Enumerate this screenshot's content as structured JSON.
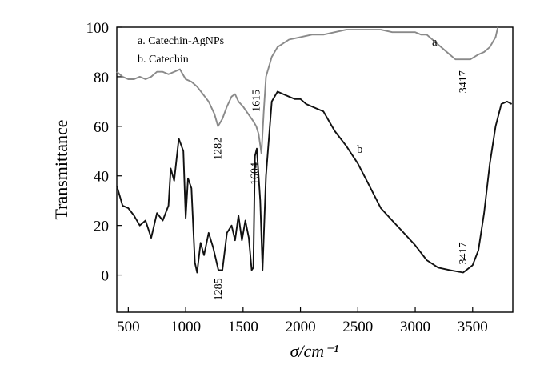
{
  "chart_data": {
    "type": "line",
    "xlabel": "σ/cm⁻¹",
    "ylabel": "Transmittance",
    "xlim": [
      400,
      3850
    ],
    "ylim": [
      -15,
      100
    ],
    "xticks": [
      500,
      1000,
      1500,
      2000,
      2500,
      3000,
      3500
    ],
    "yticks": [
      0,
      20,
      40,
      60,
      80,
      100
    ],
    "grid": false,
    "legend": {
      "position": "top-left",
      "entries": [
        "a. Catechin-AgNPs",
        "b. Catechin"
      ]
    },
    "series": [
      {
        "name": "a",
        "color": "#8a8a8a",
        "x": [
          400,
          450,
          500,
          550,
          600,
          650,
          700,
          750,
          800,
          850,
          900,
          950,
          1000,
          1050,
          1100,
          1150,
          1200,
          1250,
          1282,
          1320,
          1360,
          1400,
          1430,
          1460,
          1500,
          1530,
          1560,
          1590,
          1615,
          1635,
          1660,
          1680,
          1700,
          1750,
          1800,
          1900,
          2000,
          2100,
          2200,
          2300,
          2400,
          2500,
          2600,
          2700,
          2800,
          2900,
          3000,
          3050,
          3100,
          3150,
          3200,
          3250,
          3300,
          3350,
          3417,
          3480,
          3550,
          3600,
          3650,
          3700,
          3720
        ],
        "y": [
          82,
          80,
          79,
          79,
          80,
          79,
          80,
          82,
          82,
          81,
          82,
          83,
          79,
          78,
          76,
          73,
          70,
          65,
          60,
          63,
          68,
          72,
          73,
          70,
          68,
          66,
          64,
          62,
          60,
          57,
          49,
          66,
          80,
          88,
          92,
          95,
          96,
          97,
          97,
          98,
          99,
          99,
          99,
          99,
          98,
          98,
          98,
          97,
          97,
          95,
          93,
          91,
          89,
          87,
          87,
          87,
          89,
          90,
          92,
          96,
          100
        ]
      },
      {
        "name": "b",
        "color": "#111111",
        "x": [
          400,
          450,
          500,
          550,
          600,
          650,
          700,
          750,
          800,
          850,
          870,
          900,
          940,
          980,
          1000,
          1020,
          1050,
          1080,
          1100,
          1130,
          1160,
          1200,
          1240,
          1285,
          1320,
          1360,
          1400,
          1430,
          1460,
          1490,
          1520,
          1550,
          1575,
          1590,
          1604,
          1620,
          1650,
          1670,
          1700,
          1750,
          1800,
          1850,
          1900,
          1950,
          2000,
          2050,
          2100,
          2150,
          2200,
          2250,
          2300,
          2400,
          2500,
          2600,
          2700,
          2800,
          2900,
          3000,
          3100,
          3200,
          3300,
          3417,
          3500,
          3550,
          3600,
          3650,
          3700,
          3750,
          3800,
          3840
        ],
        "y": [
          36,
          28,
          27,
          24,
          20,
          22,
          15,
          25,
          22,
          28,
          43,
          38,
          55,
          50,
          23,
          39,
          35,
          5,
          1,
          13,
          8,
          17,
          11,
          2,
          2,
          17,
          20,
          14,
          24,
          14,
          22,
          15,
          2,
          3,
          48,
          51,
          30,
          2,
          40,
          70,
          74,
          73,
          72,
          71,
          71,
          69,
          68,
          67,
          66,
          62,
          58,
          52,
          45,
          36,
          27,
          22,
          17,
          12,
          6,
          3,
          2,
          1,
          4,
          10,
          25,
          45,
          60,
          69,
          70,
          69
        ]
      }
    ],
    "annotations": [
      {
        "text": "1282",
        "x": 1282,
        "series": "a"
      },
      {
        "text": "1615",
        "x": 1615,
        "series": "a"
      },
      {
        "text": "3417",
        "x": 3417,
        "series": "a"
      },
      {
        "text": "1285",
        "x": 1285,
        "series": "b"
      },
      {
        "text": "1604",
        "x": 1604,
        "series": "b"
      },
      {
        "text": "3417",
        "x": 3417,
        "series": "b"
      }
    ],
    "curve_labels": [
      "a",
      "b"
    ]
  }
}
